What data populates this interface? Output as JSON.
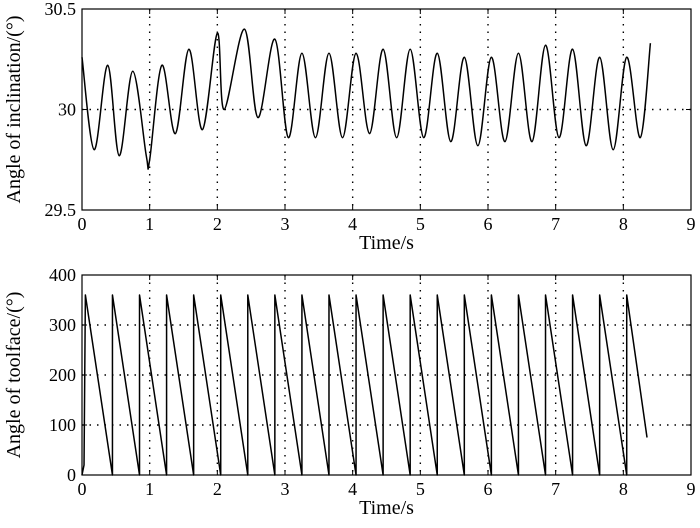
{
  "chart_data": [
    {
      "type": "line",
      "xlabel": "Time/s",
      "ylabel": "Angle of inclination/(°)",
      "xlim": [
        0,
        9
      ],
      "ylim": [
        29.5,
        30.5
      ],
      "xticks": [
        0,
        1,
        2,
        3,
        4,
        5,
        6,
        7,
        8,
        9
      ],
      "yticks": [
        29.5,
        30,
        30.5
      ],
      "ytick_labels": [
        "29.5",
        "30",
        "30.5"
      ],
      "grid": true,
      "series": [
        {
          "x": [
            0.0,
            0.18,
            0.38,
            0.55,
            0.75,
            0.95,
            1.0,
            1.18,
            1.38,
            1.58,
            1.78,
            2.0,
            2.1,
            2.4,
            2.6,
            2.85,
            3.05,
            3.25,
            3.45,
            3.65,
            3.85,
            4.05,
            4.25,
            4.45,
            4.65,
            4.85,
            5.05,
            5.25,
            5.45,
            5.65,
            5.85,
            6.05,
            6.25,
            6.45,
            6.65,
            6.85,
            7.05,
            7.25,
            7.45,
            7.65,
            7.85,
            8.05,
            8.25,
            8.4
          ],
          "y": [
            30.26,
            29.8,
            30.22,
            29.77,
            30.19,
            29.77,
            29.75,
            30.22,
            29.88,
            30.3,
            29.9,
            30.38,
            30.0,
            30.4,
            29.96,
            30.35,
            29.86,
            30.28,
            29.86,
            30.28,
            29.86,
            30.28,
            29.88,
            30.3,
            29.86,
            30.3,
            29.86,
            30.28,
            29.84,
            30.26,
            29.82,
            30.26,
            29.84,
            30.28,
            29.84,
            30.32,
            29.86,
            30.3,
            29.82,
            30.26,
            29.8,
            30.26,
            29.86,
            30.33
          ]
        }
      ]
    },
    {
      "type": "line",
      "xlabel": "Time/s",
      "ylabel": "Angle of toolface/(°)",
      "xlim": [
        0,
        9
      ],
      "ylim": [
        0,
        400
      ],
      "xticks": [
        0,
        1,
        2,
        3,
        4,
        5,
        6,
        7,
        8,
        9
      ],
      "yticks": [
        0,
        100,
        200,
        300,
        400
      ],
      "ytick_labels": [
        "0",
        "100",
        "200",
        "300",
        "400"
      ],
      "grid": true,
      "series": [
        {
          "x": [
            0.0,
            0.03,
            0.05,
            0.45,
            0.45,
            0.85,
            0.85,
            1.25,
            1.25,
            1.65,
            1.65,
            2.05,
            2.05,
            2.45,
            2.45,
            2.85,
            2.85,
            3.25,
            3.25,
            3.65,
            3.65,
            4.05,
            4.05,
            4.45,
            4.45,
            4.85,
            4.85,
            5.25,
            5.25,
            5.65,
            5.65,
            6.05,
            6.05,
            6.45,
            6.45,
            6.85,
            6.85,
            7.25,
            7.25,
            7.65,
            7.65,
            8.05,
            8.05,
            8.35
          ],
          "y": [
            0,
            20,
            360,
            0,
            360,
            0,
            360,
            0,
            360,
            0,
            360,
            0,
            360,
            0,
            360,
            0,
            360,
            0,
            360,
            0,
            360,
            0,
            360,
            0,
            360,
            0,
            360,
            0,
            360,
            0,
            360,
            0,
            360,
            0,
            360,
            0,
            360,
            0,
            360,
            0,
            360,
            0,
            360,
            75
          ]
        }
      ]
    }
  ]
}
